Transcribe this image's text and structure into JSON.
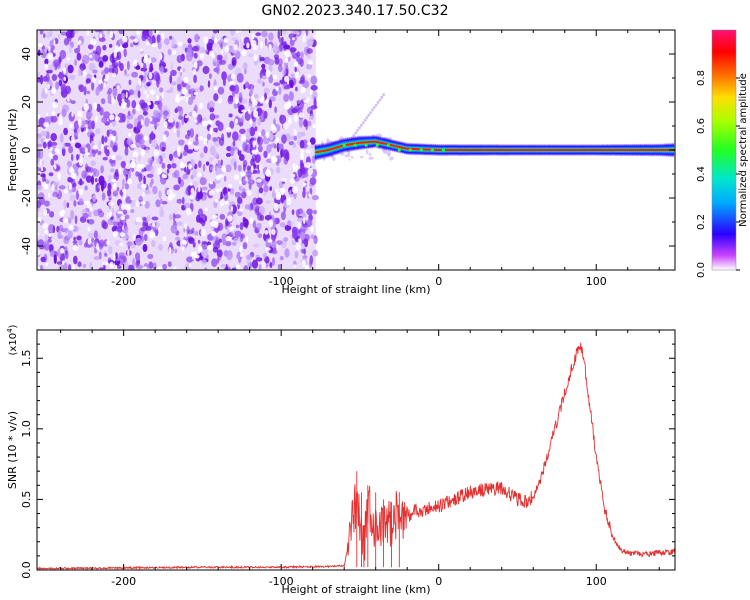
{
  "title": "GN02.2023.340.17.50.C32",
  "colorbar": {
    "label": "Normalized spectral amplitude",
    "ticks": [
      "0.0",
      "0.2",
      "0.4",
      "0.6",
      "0.8"
    ]
  },
  "chart_data": [
    {
      "type": "heatmap",
      "xlabel": "Height of straight line (km)",
      "ylabel": "Frequency (Hz)",
      "xlim": [
        -255,
        150
      ],
      "ylim": [
        -50,
        50
      ],
      "xticks": [
        -200,
        -100,
        0,
        100
      ],
      "xtick_labels": [
        "-200",
        "-100",
        "0",
        "100"
      ],
      "yticks": [
        -40,
        -20,
        0,
        20,
        40
      ],
      "ytick_labels": [
        "-40",
        "-20",
        "0",
        "20",
        "40"
      ],
      "noise_region_x": [
        -255,
        -78
      ],
      "signal_line": [
        {
          "x": -78,
          "y": -1,
          "amp": 0.35
        },
        {
          "x": -70,
          "y": 0,
          "amp": 0.5
        },
        {
          "x": -60,
          "y": 2,
          "amp": 0.55
        },
        {
          "x": -50,
          "y": 3,
          "amp": 0.6
        },
        {
          "x": -40,
          "y": 3.5,
          "amp": 0.85
        },
        {
          "x": -30,
          "y": 2,
          "amp": 0.9
        },
        {
          "x": -20,
          "y": 0.5,
          "amp": 0.9
        },
        {
          "x": 0,
          "y": 0,
          "amp": 0.95
        },
        {
          "x": 50,
          "y": 0,
          "amp": 1.0
        },
        {
          "x": 100,
          "y": 0,
          "amp": 1.0
        },
        {
          "x": 140,
          "y": 0,
          "amp": 0.85
        },
        {
          "x": 150,
          "y": 0,
          "amp": 0.6
        }
      ]
    },
    {
      "type": "line",
      "xlabel": "Height of straight line (km)",
      "ylabel": "SNR (10 * v/v)",
      "scale_label": "(x10",
      "scale_exponent": "4",
      "scale_suffix": ")",
      "xlim": [
        -255,
        150
      ],
      "ylim": [
        0,
        1.7
      ],
      "xticks": [
        -200,
        -100,
        0,
        100
      ],
      "xtick_labels": [
        "-200",
        "-100",
        "0",
        "100"
      ],
      "yticks": [
        0,
        0.5,
        1.0,
        1.5
      ],
      "ytick_labels": [
        "0.0",
        "0.5",
        "1.0",
        "1.5"
      ],
      "series": [
        {
          "color": "#e53030",
          "x": [
            -255,
            -200,
            -150,
            -100,
            -70,
            -60,
            -56,
            -52,
            -48,
            -44,
            -40,
            -35,
            -30,
            -25,
            -20,
            -15,
            -10,
            -5,
            0,
            10,
            20,
            30,
            40,
            50,
            55,
            60,
            65,
            70,
            75,
            80,
            85,
            88,
            90,
            92,
            95,
            100,
            105,
            110,
            115,
            120,
            130,
            140,
            150
          ],
          "y": [
            0.01,
            0.015,
            0.02,
            0.02,
            0.025,
            0.03,
            0.25,
            0.5,
            0.15,
            0.45,
            0.25,
            0.3,
            0.35,
            0.4,
            0.38,
            0.42,
            0.4,
            0.45,
            0.45,
            0.5,
            0.55,
            0.57,
            0.58,
            0.5,
            0.48,
            0.52,
            0.65,
            0.85,
            1.05,
            1.25,
            1.45,
            1.55,
            1.6,
            1.5,
            1.25,
            0.8,
            0.45,
            0.25,
            0.15,
            0.12,
            0.11,
            0.12,
            0.13
          ]
        }
      ]
    }
  ]
}
